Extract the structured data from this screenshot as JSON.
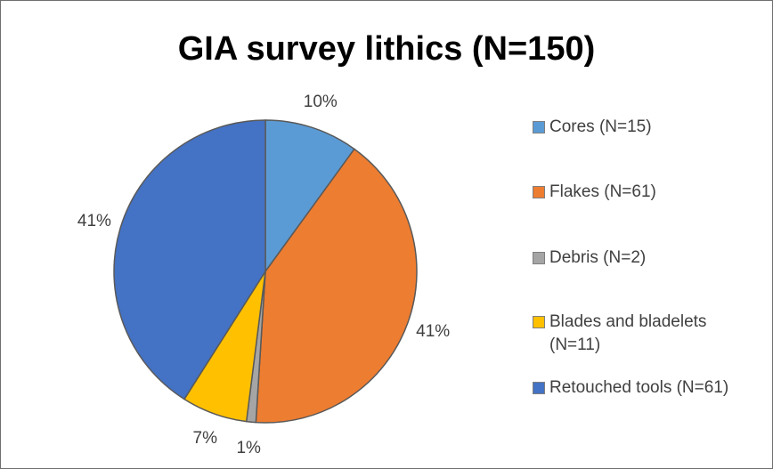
{
  "chart_data": {
    "type": "pie",
    "title": "GIA survey lithics (N=150)",
    "categories": [
      "Cores (N=15)",
      "Flakes (N=61)",
      "Debris (N=2)",
      "Blades and bladelets (N=11)",
      "Retouched tools (N=61)"
    ],
    "values": [
      10,
      41,
      1,
      7,
      41
    ],
    "value_labels": [
      "10%",
      "41%",
      "1%",
      "7%",
      "41%"
    ],
    "colors": [
      "#5b9bd5",
      "#ed7d31",
      "#a5a5a5",
      "#ffc000",
      "#4472c4"
    ],
    "legend": "right"
  }
}
